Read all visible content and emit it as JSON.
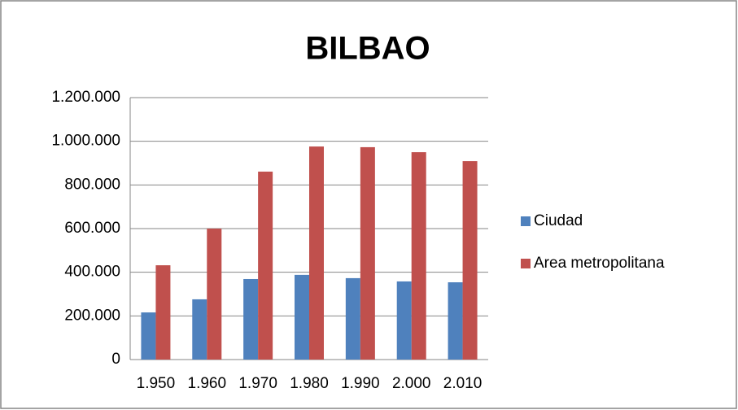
{
  "chart_data": {
    "type": "bar",
    "title": "BILBAO",
    "categories": [
      "1.950",
      "1.960",
      "1.970",
      "1.980",
      "1.990",
      "2.000",
      "2.010"
    ],
    "series": [
      {
        "name": "Ciudad",
        "color": "#4f81bd",
        "values": [
          216000,
          276000,
          369000,
          388000,
          373000,
          358000,
          354000
        ]
      },
      {
        "name": "Area metropolitana",
        "color": "#c0504d",
        "values": [
          432000,
          600000,
          861000,
          976000,
          973000,
          950000,
          909000
        ]
      }
    ],
    "ylim": [
      0,
      1200000
    ],
    "yticks": [
      0,
      {
        "value": 200000,
        "label": "200.000"
      },
      {
        "value": 400000,
        "label": "400.000"
      },
      {
        "value": 600000,
        "label": "600.000"
      },
      {
        "value": 800000,
        "label": "800.000"
      },
      {
        "value": 1000000,
        "label": "1.000.000"
      },
      {
        "value": 1200000,
        "label": "1.200.000"
      }
    ],
    "grid": true,
    "legend": "right"
  }
}
